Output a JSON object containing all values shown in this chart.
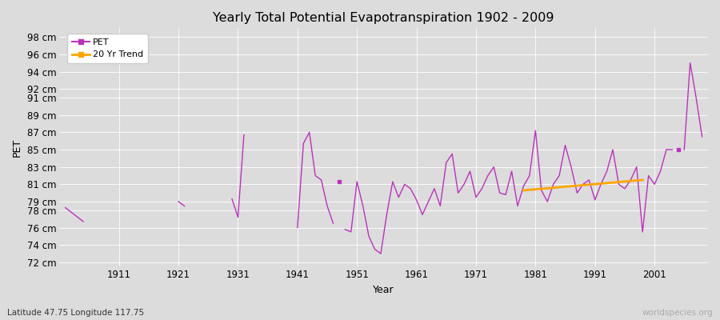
{
  "title": "Yearly Total Potential Evapotranspiration 1902 - 2009",
  "xlabel": "Year",
  "ylabel": "PET",
  "subtitle": "Latitude 47.75 Longitude 117.75",
  "watermark": "worldspecies.org",
  "pet_color": "#bb33bb",
  "trend_color": "#ffa500",
  "bg_color": "#dcdcdc",
  "grid_color": "#ffffff",
  "xlim": [
    1901,
    2010
  ],
  "ylim": [
    71.5,
    99
  ],
  "xticks": [
    1911,
    1921,
    1931,
    1941,
    1951,
    1961,
    1971,
    1981,
    1991,
    2001
  ],
  "ytick_positions": [
    72,
    74,
    76,
    78,
    79,
    81,
    83,
    85,
    87,
    89,
    91,
    92,
    94,
    96,
    98
  ],
  "ytick_labels": [
    "72 cm",
    "74 cm",
    "76 cm",
    "78 cm",
    "79 cm",
    "81 cm",
    "83 cm",
    "85 cm",
    "87 cm",
    "89 cm",
    "91 cm",
    "92 cm",
    "94 cm",
    "96 cm",
    "98 cm"
  ],
  "segments": [
    [
      1902,
      78.3
    ],
    [
      1905,
      76.7
    ],
    [
      null,
      null
    ],
    [
      1921,
      79.0
    ],
    [
      1922,
      78.5
    ],
    [
      null,
      null
    ],
    [
      1930,
      79.3
    ],
    [
      1931,
      77.2
    ],
    [
      1932,
      86.7
    ],
    [
      null,
      null
    ],
    [
      1941,
      76.0
    ],
    [
      1942,
      85.7
    ],
    [
      1943,
      87.0
    ],
    [
      1944,
      82.0
    ],
    [
      1945,
      81.5
    ],
    [
      1946,
      78.5
    ],
    [
      1947,
      76.5
    ],
    [
      null,
      null
    ],
    [
      1949,
      75.8
    ],
    [
      1950,
      75.5
    ],
    [
      1951,
      81.3
    ],
    [
      1952,
      78.5
    ],
    [
      1953,
      75.0
    ],
    [
      1954,
      73.5
    ],
    [
      1955,
      73.0
    ],
    [
      1956,
      77.5
    ],
    [
      1957,
      81.3
    ],
    [
      1958,
      79.5
    ],
    [
      1959,
      81.0
    ],
    [
      1960,
      80.5
    ],
    [
      1961,
      79.2
    ],
    [
      1962,
      77.5
    ],
    [
      1963,
      79.0
    ],
    [
      1964,
      80.5
    ],
    [
      1965,
      78.5
    ],
    [
      1966,
      83.5
    ],
    [
      1967,
      84.5
    ],
    [
      1968,
      80.0
    ],
    [
      1969,
      81.0
    ],
    [
      1970,
      82.5
    ],
    [
      1971,
      79.5
    ],
    [
      1972,
      80.5
    ],
    [
      1973,
      82.0
    ],
    [
      1974,
      83.0
    ],
    [
      1975,
      80.0
    ],
    [
      1976,
      79.8
    ],
    [
      1977,
      82.5
    ],
    [
      1978,
      78.5
    ],
    [
      1979,
      80.8
    ],
    [
      1980,
      82.0
    ],
    [
      1981,
      87.2
    ],
    [
      1982,
      80.3
    ],
    [
      1983,
      79.0
    ],
    [
      1984,
      81.0
    ],
    [
      1985,
      82.0
    ],
    [
      1986,
      85.5
    ],
    [
      1987,
      83.0
    ],
    [
      1988,
      80.0
    ],
    [
      1989,
      81.0
    ],
    [
      1990,
      81.5
    ],
    [
      1991,
      79.2
    ],
    [
      1992,
      81.0
    ],
    [
      1993,
      82.5
    ],
    [
      1994,
      85.0
    ],
    [
      1995,
      81.0
    ],
    [
      1996,
      80.5
    ],
    [
      1997,
      81.5
    ],
    [
      1998,
      83.0
    ],
    [
      1999,
      75.5
    ],
    [
      2000,
      82.0
    ],
    [
      2001,
      81.0
    ],
    [
      2002,
      82.5
    ],
    [
      2003,
      85.0
    ],
    [
      2004,
      85.0
    ],
    [
      null,
      null
    ],
    [
      2006,
      85.0
    ],
    [
      2007,
      95.0
    ],
    [
      2008,
      91.0
    ],
    [
      2009,
      86.5
    ]
  ],
  "isolated_points": [
    [
      1948,
      81.3
    ],
    [
      2005,
      85.0
    ]
  ],
  "trend_line": [
    [
      1979,
      80.3
    ],
    [
      1999,
      81.5
    ]
  ]
}
